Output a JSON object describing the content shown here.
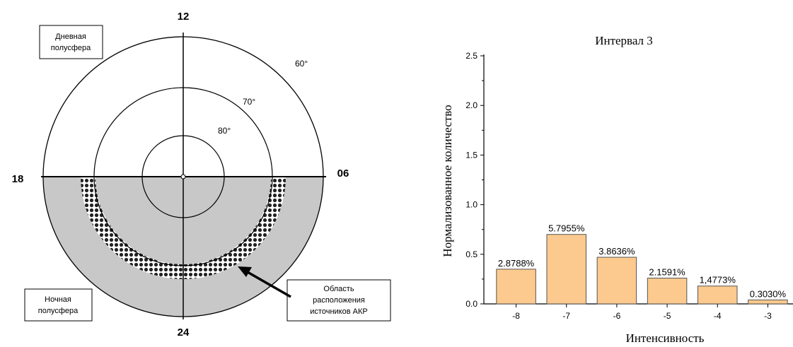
{
  "polar_diagram": {
    "hour_top": "12",
    "hour_bottom": "24",
    "hour_left": "18",
    "hour_right": "06",
    "lat_60": "60°",
    "lat_70": "70°",
    "lat_80": "80°",
    "day_label_line1": "Дневная",
    "day_label_line2": "полусфера",
    "night_label_line1": "Ночная",
    "night_label_line2": "полусфера",
    "source_label_line1": "Область",
    "source_label_line2": "расположения",
    "source_label_line3": "источников АКР",
    "colors": {
      "night": "#c8c8c8",
      "hatch": "#222222",
      "lines": "#000000"
    }
  },
  "chart_data": {
    "type": "bar",
    "title": "Интервал 3",
    "xlabel": "Интенсивность",
    "ylabel": "Нормализованное количество",
    "categories": [
      "-8",
      "-7",
      "-6",
      "-5",
      "-4",
      "-3"
    ],
    "values": [
      0.35,
      0.7,
      0.47,
      0.26,
      0.18,
      0.04
    ],
    "data_labels": [
      "2.8788%",
      "5.7955%",
      "3.8636%",
      "2.1591%",
      "1,4773%",
      "0.3030%"
    ],
    "ylim": [
      0,
      2.5
    ],
    "yticks": [
      "0.0",
      "0.5",
      "1.0",
      "1.5",
      "2.0",
      "2.5"
    ],
    "grid": false,
    "colors": {
      "bar_fill": "#fcc98e",
      "bar_edge": "#555555"
    }
  }
}
